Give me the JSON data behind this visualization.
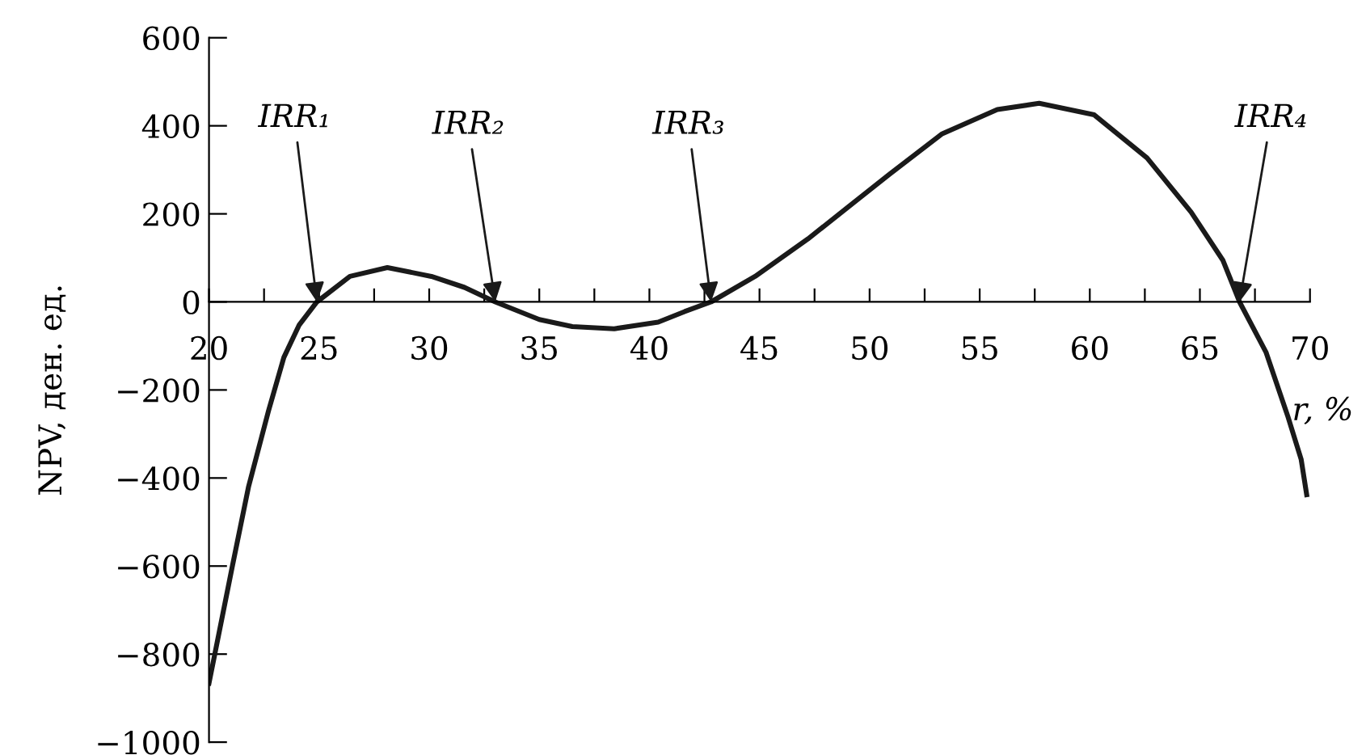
{
  "chart_data": {
    "type": "line",
    "xlabel": "r, %",
    "ylabel": "NPV, ден. ед.",
    "xlim": [
      20,
      70
    ],
    "ylim": [
      -1000,
      600
    ],
    "xticks": [
      20,
      {
        "value": 22.5,
        "label": null
      },
      25,
      {
        "value": 27.5,
        "label": null
      },
      30,
      {
        "value": 32.5,
        "label": null
      },
      35,
      {
        "value": 37.5,
        "label": null
      },
      40,
      {
        "value": 42.5,
        "label": null
      },
      45,
      {
        "value": 47.5,
        "label": null
      },
      50,
      {
        "value": 52.5,
        "label": null
      },
      55,
      {
        "value": 57.5,
        "label": null
      },
      60,
      {
        "value": 62.5,
        "label": null
      },
      65,
      {
        "value": 67.5,
        "label": null
      },
      70
    ],
    "yticks": [
      {
        "value": -1000,
        "label": "−1000"
      },
      {
        "value": -800,
        "label": "−800"
      },
      {
        "value": -600,
        "label": "−600"
      },
      {
        "value": -400,
        "label": "−400"
      },
      {
        "value": -200,
        "label": "−200"
      },
      0,
      200,
      400,
      600
    ],
    "grid": false,
    "series": [
      {
        "color": "#1a1a1a",
        "x": [
          20,
          21.05,
          21.8,
          22.7,
          23.4,
          24.1,
          24.9,
          26.4,
          28.1,
          30.1,
          31.6,
          33.0,
          35.0,
          36.5,
          38.4,
          40.4,
          41.6,
          42.8,
          44.8,
          47.2,
          50.9,
          53.3,
          55.8,
          57.7,
          60.2,
          62.6,
          64.6,
          66.05,
          66.8,
          68.0,
          69.0,
          69.6,
          69.85
        ],
        "values": [
          -866,
          -603,
          -419,
          -248,
          -126,
          -52,
          0,
          58,
          78,
          58,
          33,
          0,
          -40,
          -56,
          -61,
          -46,
          -22,
          0,
          58,
          143,
          290,
          382,
          437,
          451,
          425,
          327,
          204,
          94,
          0,
          -114,
          -261,
          -358,
          -438
        ]
      }
    ],
    "annotations": [
      {
        "text": "IRR₁",
        "x": 24.9,
        "y": 0
      },
      {
        "text": "IRR₂",
        "x": 33.0,
        "y": 0
      },
      {
        "text": "IRR₃",
        "x": 42.8,
        "y": 0
      },
      {
        "text": "IRR₄",
        "x": 66.8,
        "y": 0
      }
    ]
  }
}
